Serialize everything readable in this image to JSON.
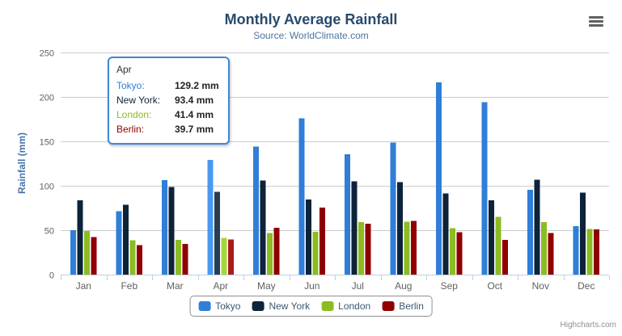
{
  "header": {
    "title": "Monthly Average Rainfall",
    "subtitle": "Source: WorldClimate.com"
  },
  "chart_data": {
    "type": "bar",
    "title": "Monthly Average Rainfall",
    "subtitle": "Source: WorldClimate.com",
    "categories": [
      "Jan",
      "Feb",
      "Mar",
      "Apr",
      "May",
      "Jun",
      "Jul",
      "Aug",
      "Sep",
      "Oct",
      "Nov",
      "Dec"
    ],
    "series": [
      {
        "name": "Tokyo",
        "color": "#2f7ed8",
        "values": [
          49.9,
          71.5,
          106.4,
          129.2,
          144.0,
          176.0,
          135.6,
          148.5,
          216.4,
          194.1,
          95.6,
          54.4
        ]
      },
      {
        "name": "New York",
        "color": "#0d233a",
        "values": [
          83.6,
          78.8,
          98.5,
          93.4,
          106.0,
          84.5,
          105.0,
          104.3,
          91.2,
          83.5,
          106.6,
          92.3
        ]
      },
      {
        "name": "London",
        "color": "#8bbc21",
        "values": [
          48.9,
          38.8,
          39.3,
          41.4,
          47.0,
          48.3,
          59.0,
          59.6,
          52.4,
          65.2,
          59.3,
          51.2
        ]
      },
      {
        "name": "Berlin",
        "color": "#910000",
        "values": [
          42.4,
          33.2,
          34.5,
          39.7,
          52.6,
          75.5,
          57.4,
          60.4,
          47.6,
          39.1,
          46.8,
          51.1
        ]
      }
    ],
    "xlabel": "",
    "ylabel": "Rainfall (mm)",
    "ylim": [
      0,
      250
    ],
    "ytick_step": 50,
    "yticks": [
      0,
      50,
      100,
      150,
      200,
      250
    ],
    "grid": true,
    "legend_position": "bottom-center",
    "highlighted_category": "Apr",
    "highlighted_category_index": 3
  },
  "tooltip": {
    "header": "Apr",
    "rows": [
      {
        "name": "Tokyo:",
        "value": "129.2 mm",
        "color": "#2f7ed8"
      },
      {
        "name": "New York:",
        "value": "93.4 mm",
        "color": "#0d233a"
      },
      {
        "name": "London:",
        "value": "41.4 mm",
        "color": "#8bbc21"
      },
      {
        "name": "Berlin:",
        "value": "39.7 mm",
        "color": "#910000"
      }
    ],
    "border_color": "#3c87dd"
  },
  "icons": {
    "export_menu": "hamburger-icon"
  },
  "colors": {
    "title": "#274b6d",
    "subtitle": "#4d759e",
    "axis_title": "#4572a7",
    "tick_label": "#606060",
    "grid_line": "#cccccc",
    "axis_line": "#c0d0e0",
    "legend_border": "#909090",
    "legend_text": "#3e576f",
    "credits_text": "#909090"
  },
  "credits": {
    "label": "Highcharts.com"
  }
}
